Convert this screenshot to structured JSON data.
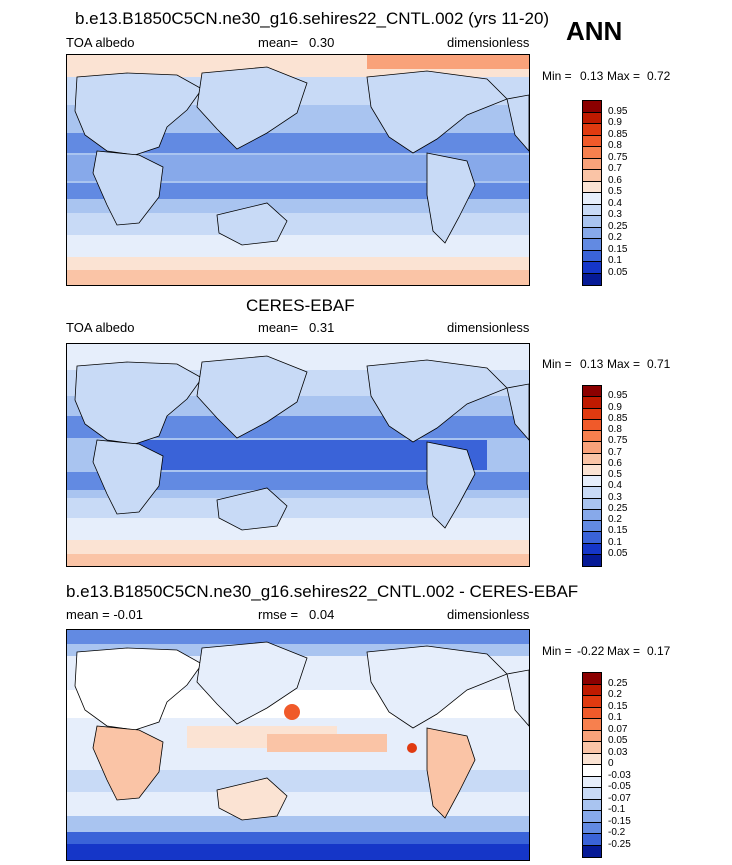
{
  "season": "ANN",
  "panels": [
    {
      "title": "b.e13.B1850C5CN.ne30_g16.sehires22_CNTL.002 (yrs 11-20)",
      "left_label": "TOA albedo",
      "stat_label": "mean=",
      "stat_value": "0.30",
      "units": "dimensionless",
      "minmax": {
        "min_label": "Min =",
        "min": "0.13",
        "max_label": "Max =",
        "max": "0.72"
      },
      "levels": [
        "0.95",
        "0.9",
        "0.85",
        "0.8",
        "0.75",
        "0.7",
        "0.6",
        "0.5",
        "0.4",
        "0.3",
        "0.25",
        "0.2",
        "0.15",
        "0.1",
        "0.05"
      ],
      "colors": [
        "#8b0000",
        "#bf1a00",
        "#e03a10",
        "#f05a2a",
        "#f7804e",
        "#f9a27a",
        "#fac4a6",
        "#fbe3d3",
        "#e6eefb",
        "#c8daf6",
        "#a9c4f0",
        "#87a9ea",
        "#628ae2",
        "#3a63d8",
        "#1536c8",
        "#061a96"
      ]
    },
    {
      "title": "CERES-EBAF",
      "left_label": "TOA albedo",
      "stat_label": "mean=",
      "stat_value": "0.31",
      "units": "dimensionless",
      "minmax": {
        "min_label": "Min =",
        "min": "0.13",
        "max_label": "Max =",
        "max": "0.71"
      },
      "levels": [
        "0.95",
        "0.9",
        "0.85",
        "0.8",
        "0.75",
        "0.7",
        "0.6",
        "0.5",
        "0.4",
        "0.3",
        "0.25",
        "0.2",
        "0.15",
        "0.1",
        "0.05"
      ],
      "colors": [
        "#8b0000",
        "#bf1a00",
        "#e03a10",
        "#f05a2a",
        "#f7804e",
        "#f9a27a",
        "#fac4a6",
        "#fbe3d3",
        "#e6eefb",
        "#c8daf6",
        "#a9c4f0",
        "#87a9ea",
        "#628ae2",
        "#3a63d8",
        "#1536c8",
        "#061a96"
      ]
    },
    {
      "title": "b.e13.B1850C5CN.ne30_g16.sehires22_CNTL.002 - CERES-EBAF",
      "left_label": "mean =  -0.01",
      "stat_label": "rmse =",
      "stat_value": "0.04",
      "units": "dimensionless",
      "minmax": {
        "min_label": "Min =",
        "min": "-0.22",
        "max_label": "Max =",
        "max": "0.17"
      },
      "levels": [
        "0.25",
        "0.2",
        "0.15",
        "0.1",
        "0.07",
        "0.05",
        "0.03",
        "0",
        "-0.03",
        "-0.05",
        "-0.07",
        "-0.1",
        "-0.15",
        "-0.2",
        "-0.25"
      ],
      "colors": [
        "#8b0000",
        "#bf1a00",
        "#e03a10",
        "#f05a2a",
        "#f7804e",
        "#f9a27a",
        "#fac4a6",
        "#fbe3d3",
        "#ffffff",
        "#e6eefb",
        "#c8daf6",
        "#a9c4f0",
        "#87a9ea",
        "#628ae2",
        "#3a63d8",
        "#061a96"
      ]
    }
  ]
}
